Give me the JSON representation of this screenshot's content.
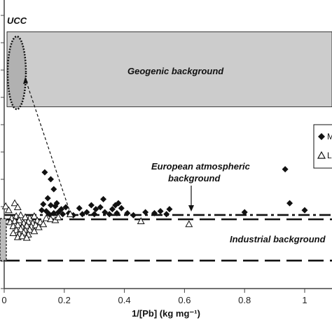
{
  "chart_data": {
    "type": "scatter",
    "xlabel": "1/[Pb] (kg mg⁻¹)",
    "xlim": [
      0,
      1.08
    ],
    "ylim": [
      0,
      1
    ],
    "x_ticks": [
      "0",
      "0.2",
      "0.4",
      "0.6",
      "0.8",
      "1"
    ],
    "series": [
      {
        "name": "M",
        "marker": "diamond",
        "color": "#111111",
        "points": [
          [
            0.135,
            0.56
          ],
          [
            0.155,
            0.525
          ],
          [
            0.165,
            0.475
          ],
          [
            0.145,
            0.43
          ],
          [
            0.13,
            0.4
          ],
          [
            0.155,
            0.395
          ],
          [
            0.175,
            0.405
          ],
          [
            0.17,
            0.39
          ],
          [
            0.125,
            0.37
          ],
          [
            0.14,
            0.365
          ],
          [
            0.19,
            0.375
          ],
          [
            0.205,
            0.385
          ],
          [
            0.15,
            0.35
          ],
          [
            0.165,
            0.355
          ],
          [
            0.18,
            0.36
          ],
          [
            0.195,
            0.35
          ],
          [
            0.215,
            0.355
          ],
          [
            0.23,
            0.345
          ],
          [
            0.25,
            0.38
          ],
          [
            0.26,
            0.35
          ],
          [
            0.275,
            0.36
          ],
          [
            0.29,
            0.395
          ],
          [
            0.3,
            0.35
          ],
          [
            0.305,
            0.375
          ],
          [
            0.32,
            0.385
          ],
          [
            0.33,
            0.425
          ],
          [
            0.335,
            0.36
          ],
          [
            0.35,
            0.35
          ],
          [
            0.36,
            0.375
          ],
          [
            0.37,
            0.395
          ],
          [
            0.375,
            0.355
          ],
          [
            0.38,
            0.405
          ],
          [
            0.39,
            0.38
          ],
          [
            0.41,
            0.355
          ],
          [
            0.43,
            0.345
          ],
          [
            0.47,
            0.36
          ],
          [
            0.5,
            0.355
          ],
          [
            0.52,
            0.365
          ],
          [
            0.54,
            0.35
          ],
          [
            0.55,
            0.375
          ],
          [
            0.8,
            0.36
          ],
          [
            0.935,
            0.575
          ],
          [
            0.95,
            0.405
          ],
          [
            1.0,
            0.37
          ]
        ]
      },
      {
        "name": "L",
        "marker": "open-triangle",
        "color": "#111111",
        "points": [
          [
            0.005,
            0.39
          ],
          [
            0.035,
            0.405
          ],
          [
            0.015,
            0.37
          ],
          [
            0.045,
            0.385
          ],
          [
            0.025,
            0.33
          ],
          [
            0.04,
            0.34
          ],
          [
            0.055,
            0.345
          ],
          [
            0.07,
            0.335
          ],
          [
            0.085,
            0.33
          ],
          [
            0.1,
            0.34
          ],
          [
            0.02,
            0.31
          ],
          [
            0.035,
            0.315
          ],
          [
            0.05,
            0.32
          ],
          [
            0.065,
            0.305
          ],
          [
            0.08,
            0.312
          ],
          [
            0.095,
            0.305
          ],
          [
            0.11,
            0.318
          ],
          [
            0.12,
            0.31
          ],
          [
            0.03,
            0.29
          ],
          [
            0.045,
            0.295
          ],
          [
            0.06,
            0.285
          ],
          [
            0.075,
            0.292
          ],
          [
            0.09,
            0.288
          ],
          [
            0.105,
            0.295
          ],
          [
            0.115,
            0.285
          ],
          [
            0.13,
            0.3
          ],
          [
            0.04,
            0.27
          ],
          [
            0.055,
            0.275
          ],
          [
            0.07,
            0.268
          ],
          [
            0.085,
            0.272
          ],
          [
            0.1,
            0.265
          ],
          [
            0.03,
            0.255
          ],
          [
            0.05,
            0.25
          ],
          [
            0.065,
            0.258
          ],
          [
            0.08,
            0.248
          ],
          [
            0.045,
            0.235
          ],
          [
            0.06,
            0.24
          ],
          [
            0.075,
            0.232
          ],
          [
            0.14,
            0.33
          ],
          [
            0.155,
            0.325
          ],
          [
            0.17,
            0.32
          ],
          [
            0.18,
            0.335
          ],
          [
            0.22,
            0.35
          ],
          [
            0.455,
            0.315
          ],
          [
            0.615,
            0.3
          ]
        ]
      }
    ],
    "bands": [
      {
        "label": "Geogenic background",
        "y_from": 0.73,
        "y_to": 1.0,
        "color": "#cccccc"
      }
    ],
    "reference_lines": [
      {
        "label": "European atmospheric background",
        "y": 0.375,
        "style": "dash-dot"
      },
      {
        "label": "",
        "y": 0.35,
        "style": "long-dash"
      },
      {
        "label": "Industrial background",
        "y": 0.21,
        "style": "long-dash"
      }
    ],
    "annotations": [
      "UCC",
      "Geogenic background",
      "European atmospheric background",
      "Industrial background"
    ],
    "legend": [
      "M",
      "L"
    ],
    "legend_position": "right"
  }
}
